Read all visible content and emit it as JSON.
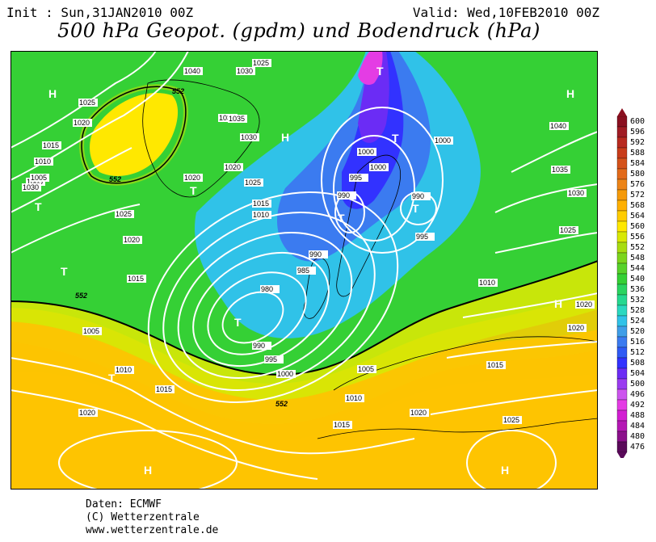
{
  "header": {
    "init": "Init : Sun,31JAN2010 00Z",
    "valid": "Valid: Wed,10FEB2010 00Z",
    "title": "500 hPa Geopot. (gpdm) und Bodendruck (hPa)"
  },
  "colors": {
    "c476": "#5a0a5a",
    "c480": "#8b108b",
    "c484": "#b418b4",
    "c488": "#d21ed2",
    "c492": "#e43ce4",
    "c496": "#cc55ee",
    "c500": "#9a3cf0",
    "c504": "#6b2cf5",
    "c508": "#3232ff",
    "c512": "#2f5af5",
    "c516": "#3b7bf0",
    "c520": "#3f9ee8",
    "c524": "#30c2e8",
    "c528": "#2ad8c0",
    "c532": "#25d890",
    "c536": "#2ad460",
    "c540": "#35d035",
    "c544": "#58d22a",
    "c548": "#7cd51c",
    "c552": "#a8dc10",
    "c556": "#d8e805",
    "c560": "#ffe800",
    "c564": "#ffcc00",
    "c568": "#ffb000",
    "c572": "#f59a0a",
    "c576": "#ec8418",
    "c580": "#e26a1a",
    "c584": "#d4521a",
    "c588": "#c83c1a",
    "c592": "#b82a20",
    "c596": "#a01c24",
    "c600": "#8a1020",
    "isobar": "#ffffff",
    "contour_552": "#000000"
  },
  "colorbar": {
    "labels": [
      "600",
      "596",
      "592",
      "588",
      "584",
      "580",
      "576",
      "572",
      "568",
      "564",
      "560",
      "556",
      "552",
      "548",
      "544",
      "540",
      "536",
      "532",
      "528",
      "524",
      "520",
      "516",
      "512",
      "508",
      "504",
      "500",
      "496",
      "492",
      "488",
      "484",
      "480",
      "476"
    ]
  },
  "map": {
    "isobar_labels": [
      "1025",
      "1040",
      "1030",
      "1035",
      "1005",
      "1025",
      "1020",
      "1015",
      "1010",
      "1030",
      "1005",
      "1025",
      "1020",
      "1015",
      "1035",
      "1030",
      "1020",
      "1025",
      "1015",
      "1010",
      "1020",
      "1000",
      "1000",
      "995",
      "990",
      "1000",
      "990",
      "995",
      "1040",
      "1035",
      "1030",
      "1025",
      "990",
      "985",
      "980",
      "990",
      "995",
      "1000",
      "1005",
      "1010",
      "1015",
      "1020",
      "1020",
      "1015",
      "1010",
      "1005",
      "1010",
      "1020",
      "1020",
      "1015",
      "1025"
    ],
    "contour_labels": [
      "552",
      "552",
      "552",
      "552"
    ],
    "high_label": "H",
    "low_label": "T"
  },
  "footer": {
    "line1": "Daten: ECMWF",
    "line2": "(C) Wetterzentrale",
    "line3": "www.wetterzentrale.de"
  }
}
